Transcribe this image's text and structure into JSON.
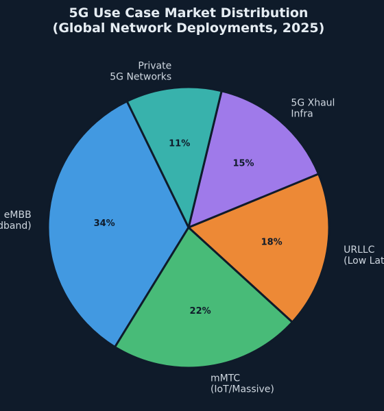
{
  "chart_data": {
    "type": "pie",
    "title": "5G Use Case Market Distribution",
    "subtitle": "(Global Network Deployments, 2025)",
    "start_angle_deg": 116,
    "direction": "counterclockwise",
    "slices": [
      {
        "label": [
          "eMBB",
          "(Enhanced Mobile Broadband)"
        ],
        "value": 34,
        "pct_label": "34%",
        "color": "#4299e1"
      },
      {
        "label": [
          "mMTC",
          "(IoT/Massive)"
        ],
        "value": 22,
        "pct_label": "22%",
        "color": "#48bb78"
      },
      {
        "label": [
          "URLLC",
          "(Low Latency)"
        ],
        "value": 18,
        "pct_label": "18%",
        "color": "#ed8936"
      },
      {
        "label": [
          "5G Xhaul",
          "Infra"
        ],
        "value": 15,
        "pct_label": "15%",
        "color": "#9f7aea"
      },
      {
        "label": [
          "Private",
          "5G Networks"
        ],
        "value": 11,
        "pct_label": "11%",
        "color": "#38b2ac"
      }
    ]
  }
}
